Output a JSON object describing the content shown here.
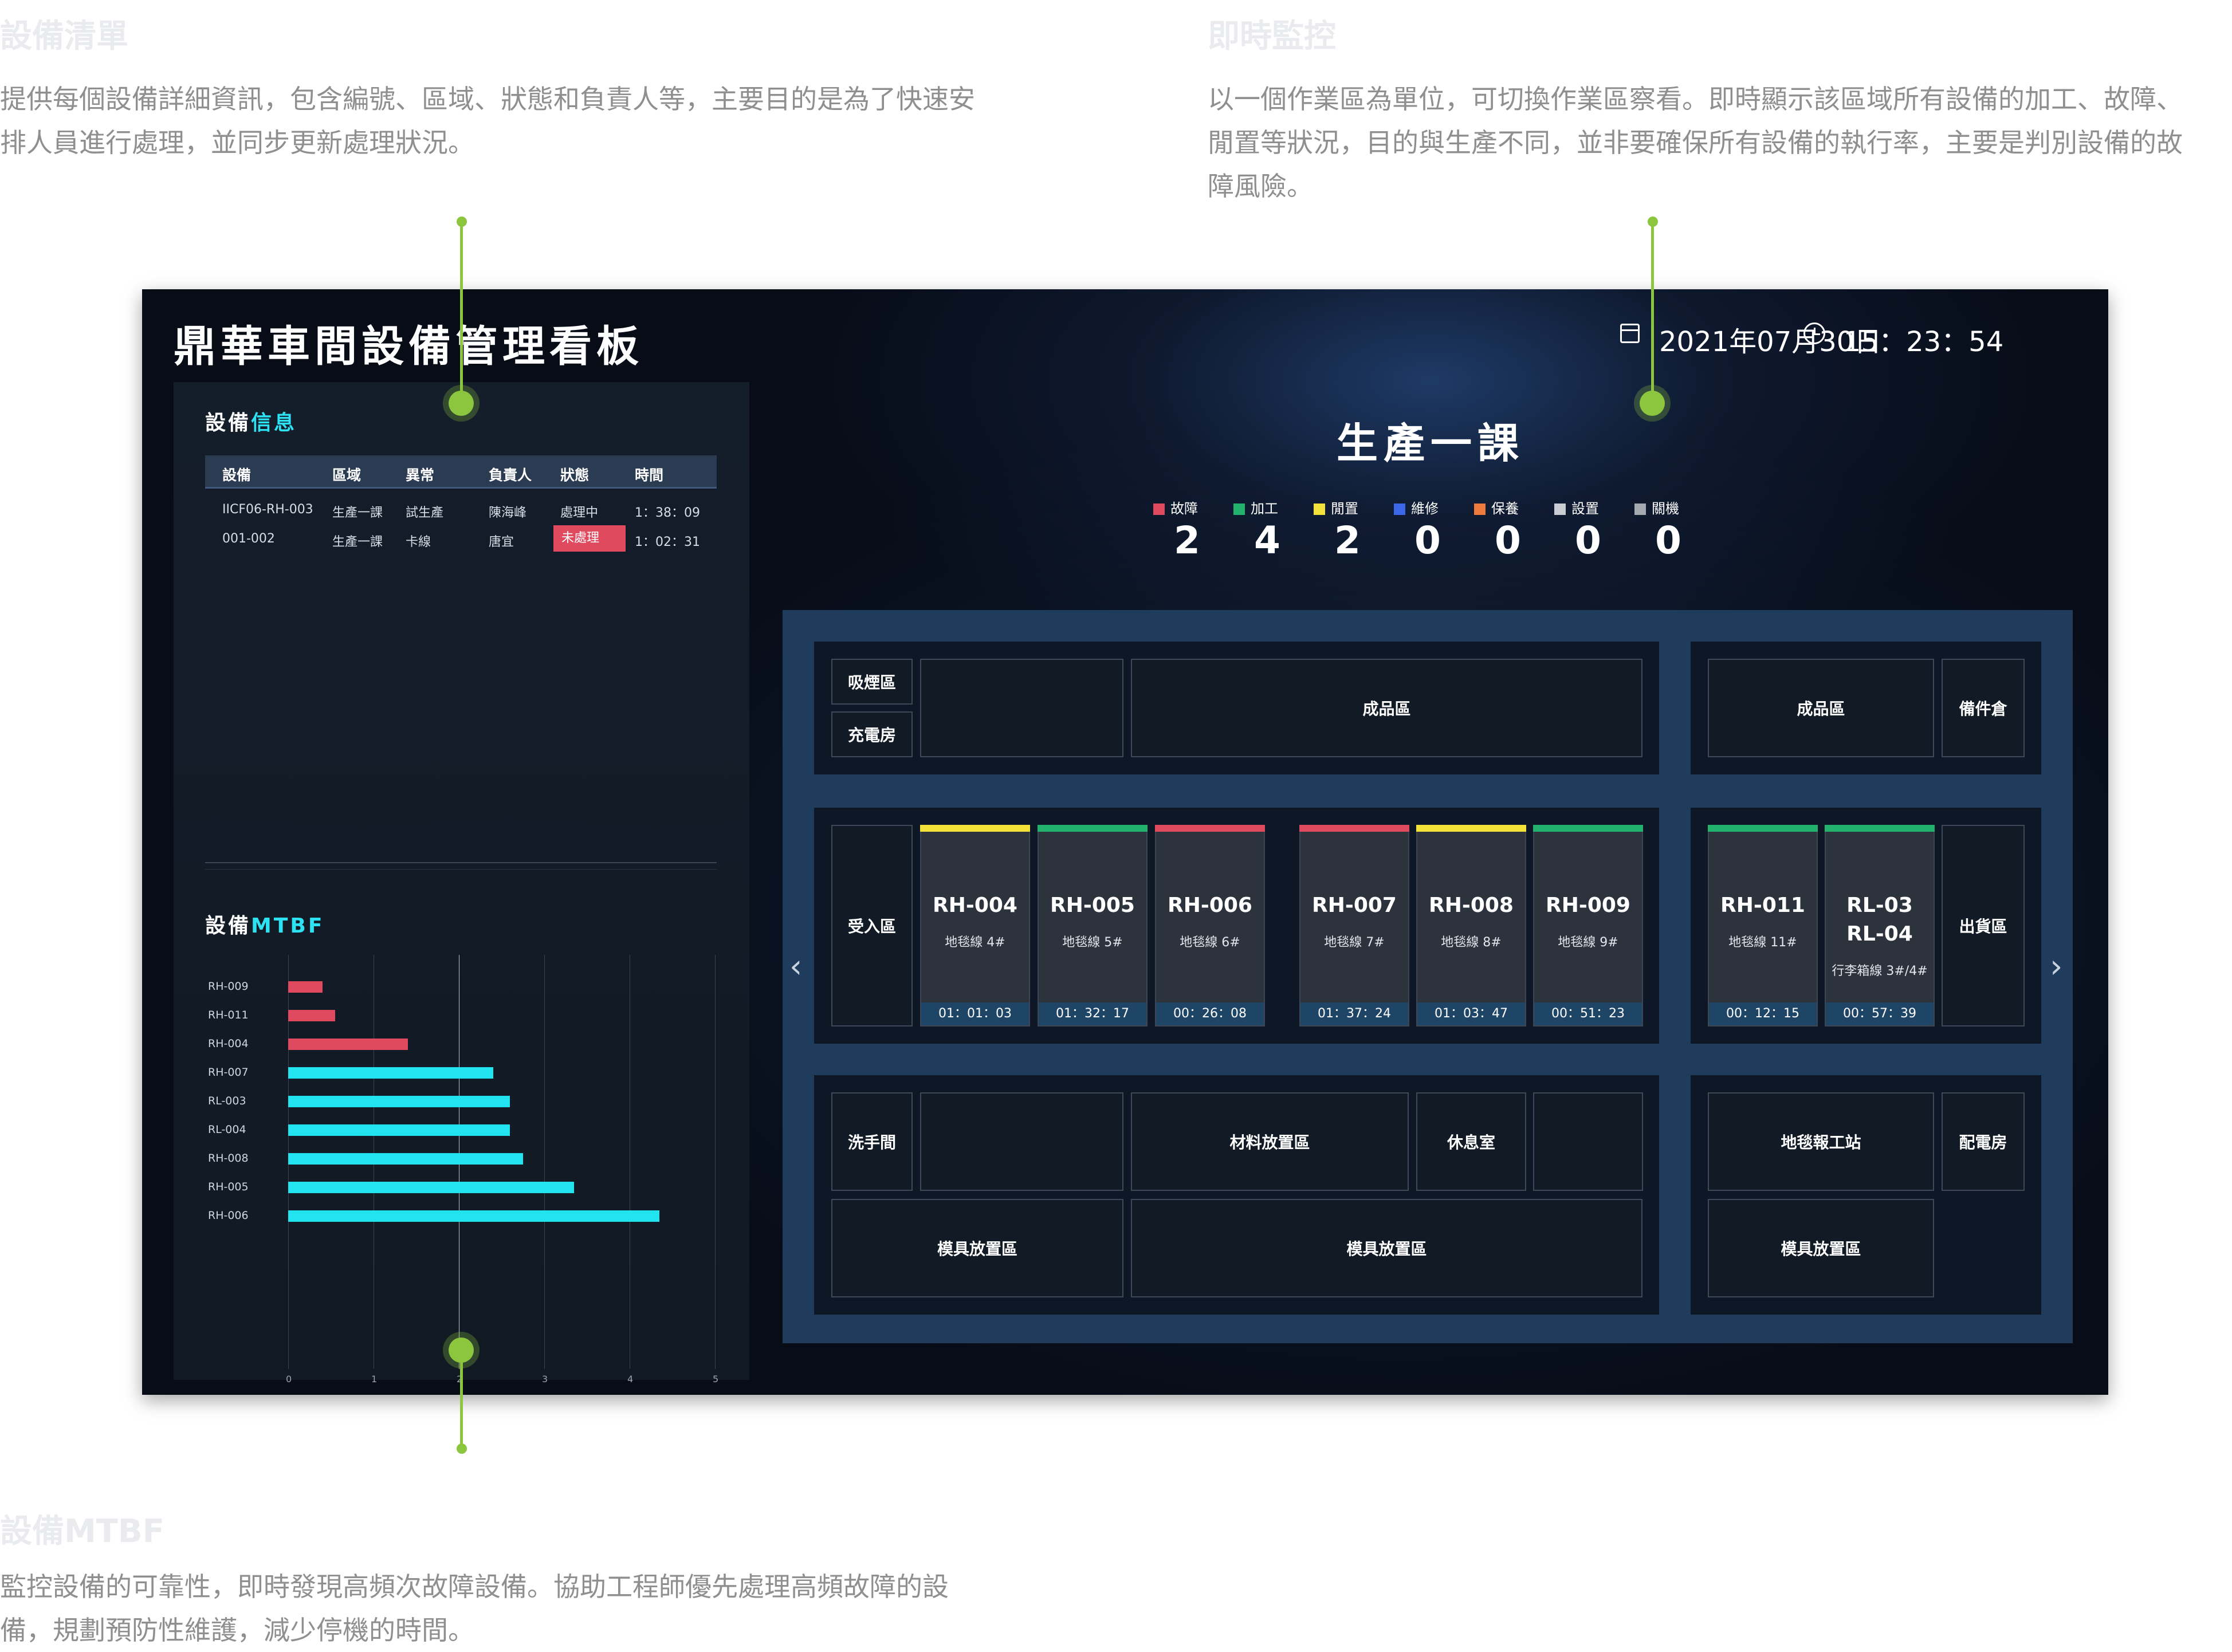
{
  "annotations": {
    "equipment_info": {
      "title": "設備清單",
      "text_line1": "提供每個設備詳細資訊，包含編號、區域、狀態和負責人等，主要目的是為了快速安",
      "text_line2": "排人員進行處理，並同步更新處理狀況。"
    },
    "monitor": {
      "title": "即時監控",
      "text_line1": "以一個作業區為單位，可切換作業區察看。即時顯示該區域所有設備的加工、故障、",
      "text_line2": "閒置等狀況，目的與生產不同，並非要確保所有設備的執行率，主要是判別設備的故",
      "text_line3": "障風險。"
    },
    "mtbf": {
      "title": "設備MTBF",
      "text_line1": "監控設備的可靠性，即時發現高頻次故障設備。協助工程師優先處理高頻故障的設",
      "text_line2": "備，規劃預防性維護，減少停機的時間。"
    }
  },
  "dashboard": {
    "title": "鼎華車間設備管理看板",
    "date": "2021年07月30日",
    "time": "15：23：54",
    "icons": [
      "calendar-icon",
      "clock-icon"
    ]
  },
  "equipment_info": {
    "title_prefix": "設備",
    "title_highlight": "信息",
    "columns": [
      "設備",
      "區域",
      "異常",
      "負責人",
      "狀態",
      "時間"
    ],
    "rows": [
      {
        "device": "IICF06-RH-003",
        "area": "生產一課",
        "abnormal": "試生產",
        "owner": "陳海峰",
        "status": "處理中",
        "time": "1：38：09"
      },
      {
        "device": "001-002",
        "area": "生產一課",
        "abnormal": "卡線",
        "owner": "唐宜",
        "status": "未處理",
        "time": "1：02：31"
      }
    ]
  },
  "mtbf": {
    "title_prefix": "設備",
    "title_highlight": "MTBF"
  },
  "chart_data": {
    "type": "bar",
    "orientation": "horizontal",
    "title": "設備MTBF",
    "categories": [
      "RH-009",
      "RH-011",
      "RH-004",
      "RH-007",
      "RL-003",
      "RL-004",
      "RH-008",
      "RH-005",
      "RH-006"
    ],
    "values": [
      0.4,
      0.55,
      1.4,
      2.4,
      2.6,
      2.6,
      2.75,
      3.35,
      4.35
    ],
    "bar_colors": [
      "#e04a5f",
      "#e04a5f",
      "#e04a5f",
      "#22e3f0",
      "#22e3f0",
      "#22e3f0",
      "#22e3f0",
      "#22e3f0",
      "#22e3f0"
    ],
    "xlim": [
      0,
      5
    ],
    "xticks": [
      "0",
      "1",
      "2",
      "3",
      "4",
      "5"
    ],
    "grid": true
  },
  "section": {
    "title": "生產一課",
    "legend": [
      {
        "label": "故障",
        "color": "#e04a5f",
        "count": "2"
      },
      {
        "label": "加工",
        "color": "#23b26d",
        "count": "4"
      },
      {
        "label": "閒置",
        "color": "#f2e23a",
        "count": "2"
      },
      {
        "label": "維修",
        "color": "#3c67e8",
        "count": "0"
      },
      {
        "label": "保養",
        "color": "#f07a3c",
        "count": "0"
      },
      {
        "label": "設置",
        "color": "#c9cdd3",
        "count": "0"
      },
      {
        "label": "關機",
        "color": "#a5a9b0",
        "count": "0"
      }
    ]
  },
  "floor": {
    "zones": {
      "smoking": "吸煙區",
      "charging": "充電房",
      "finished_a": "成品區",
      "finished_b": "成品區",
      "spare": "備件倉",
      "receiving": "受入區",
      "shipping": "出貨區",
      "washroom": "洗手間",
      "material": "材料放置區",
      "rest": "休息室",
      "report": "地毯報工站",
      "power": "配電房",
      "mold_a": "模具放置區",
      "mold_b": "模具放置區",
      "mold_c": "模具放置區"
    },
    "equipment": [
      {
        "code": "RH-004",
        "line": "地毯線 4#",
        "timer": "01：01：03",
        "status_color": "#f2e23a"
      },
      {
        "code": "RH-005",
        "line": "地毯線 5#",
        "timer": "01：32：17",
        "status_color": "#23b26d"
      },
      {
        "code": "RH-006",
        "line": "地毯線 6#",
        "timer": "00：26：08",
        "status_color": "#e04a5f"
      },
      {
        "code": "RH-007",
        "line": "地毯線 7#",
        "timer": "01：37：24",
        "status_color": "#e04a5f"
      },
      {
        "code": "RH-008",
        "line": "地毯線 8#",
        "timer": "01：03：47",
        "status_color": "#f2e23a"
      },
      {
        "code": "RH-009",
        "line": "地毯線 9#",
        "timer": "00：51：23",
        "status_color": "#23b26d"
      },
      {
        "code": "RH-011",
        "line": "地毯線 11#",
        "timer": "00：12：15",
        "status_color": "#23b26d"
      },
      {
        "code": "RL-03",
        "code2": "RL-04",
        "line": "行李箱線 3#/4#",
        "timer": "00：57：39",
        "status_color": "#23b26d"
      }
    ],
    "nav": {
      "prev": "‹",
      "next": "›"
    }
  }
}
